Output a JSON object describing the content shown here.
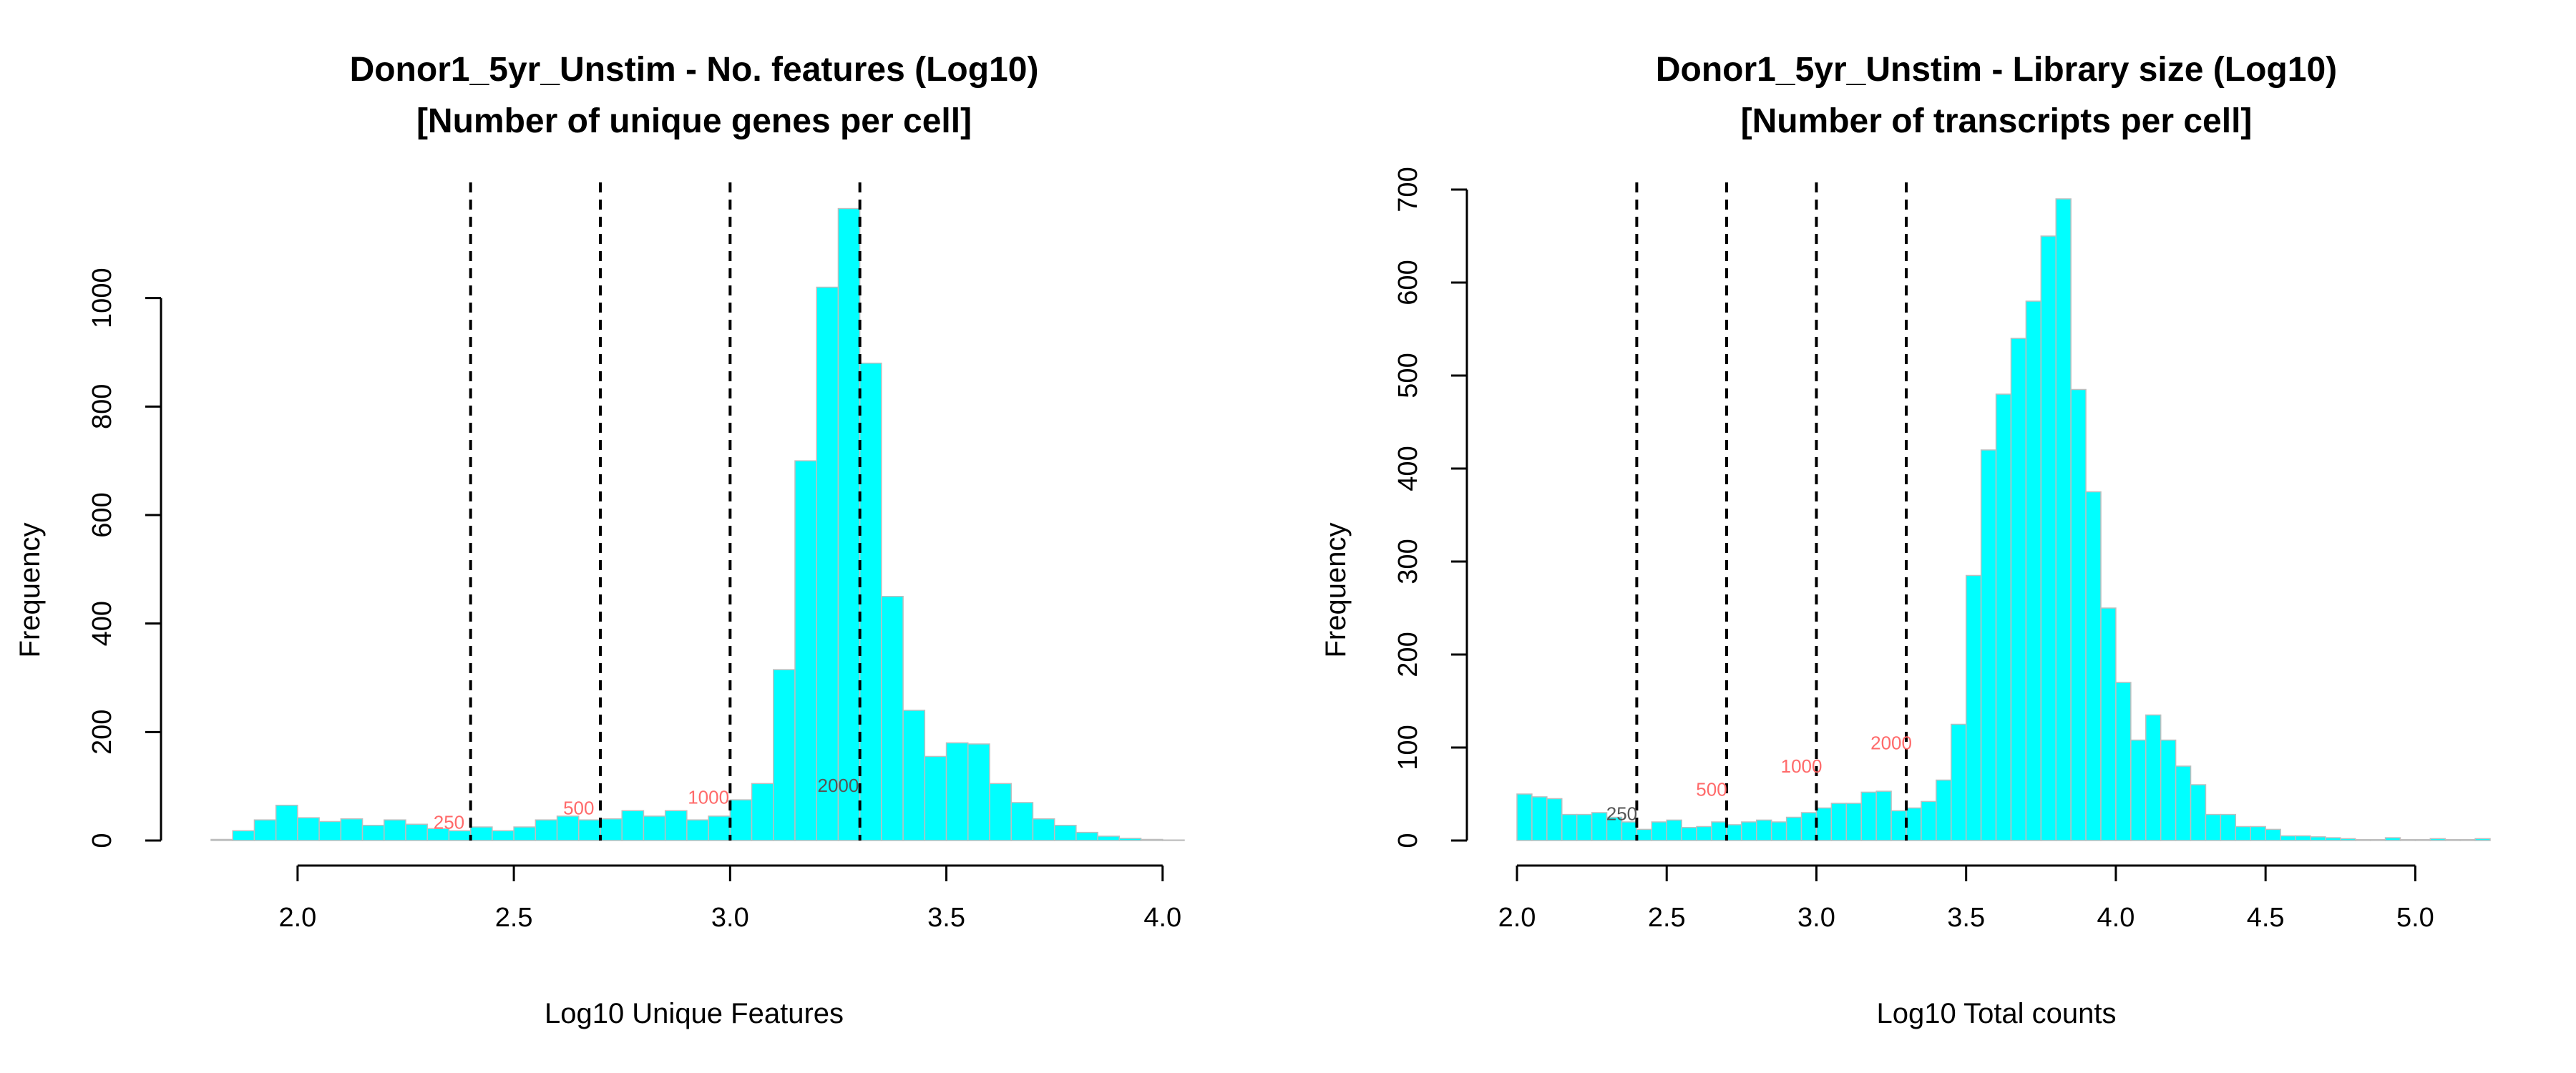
{
  "chart_data": [
    {
      "type": "bar",
      "title": "Donor1_5yr_Unstim - No. features (Log10)",
      "subtitle": "[Number of unique genes per cell]",
      "xlabel": "Log10 Unique Features",
      "ylabel": "Frequency",
      "xlim": [
        1.8,
        4.05
      ],
      "ylim": [
        0,
        1200
      ],
      "x_ticks": [
        "2.0",
        "2.5",
        "3.0",
        "3.5",
        "4.0"
      ],
      "y_ticks": [
        "0",
        "200",
        "400",
        "600",
        "800",
        "1000"
      ],
      "bin_width": 0.05,
      "bin_starts": [
        1.8,
        1.85,
        1.9,
        1.95,
        2.0,
        2.05,
        2.1,
        2.15,
        2.2,
        2.25,
        2.3,
        2.35,
        2.4,
        2.45,
        2.5,
        2.55,
        2.6,
        2.65,
        2.7,
        2.75,
        2.8,
        2.85,
        2.9,
        2.95,
        3.0,
        3.05,
        3.1,
        3.15,
        3.2,
        3.25,
        3.3,
        3.35,
        3.4,
        3.45,
        3.5,
        3.55,
        3.6,
        3.65,
        3.7,
        3.75,
        3.8,
        3.85,
        3.9,
        3.95,
        4.0
      ],
      "values": [
        2,
        18,
        38,
        65,
        42,
        35,
        40,
        28,
        38,
        30,
        22,
        18,
        25,
        18,
        25,
        38,
        45,
        38,
        40,
        55,
        45,
        55,
        38,
        45,
        75,
        105,
        315,
        700,
        1020,
        1165,
        880,
        450,
        240,
        155,
        180,
        178,
        105,
        70,
        40,
        28,
        15,
        8,
        4,
        2,
        1
      ],
      "bar_color": "#00FFFF",
      "thresholds": [
        2.4,
        2.7,
        3.0,
        3.3
      ],
      "annotations": [
        {
          "text": "250",
          "x": 2.35,
          "y": 22,
          "color": "#FF6A6A"
        },
        {
          "text": "500",
          "x": 2.65,
          "y": 48,
          "color": "#FF6A6A"
        },
        {
          "text": "1000",
          "x": 2.95,
          "y": 68,
          "color": "#FF6A6A"
        },
        {
          "text": "2000",
          "x": 3.25,
          "y": 90,
          "color": "#555555"
        }
      ]
    },
    {
      "type": "bar",
      "title": "Donor1_5yr_Unstim - Library size (Log10)",
      "subtitle": "[Number of transcripts per cell]",
      "xlabel": "Log10 Total counts",
      "ylabel": "Frequency",
      "xlim": [
        2.0,
        5.25
      ],
      "ylim": [
        0,
        700
      ],
      "x_ticks": [
        "2.0",
        "2.5",
        "3.0",
        "3.5",
        "4.0",
        "4.5",
        "5.0"
      ],
      "y_ticks": [
        "0",
        "100",
        "200",
        "300",
        "400",
        "500",
        "600",
        "700"
      ],
      "bin_width": 0.05,
      "bin_starts": [
        2.0,
        2.05,
        2.1,
        2.15,
        2.2,
        2.25,
        2.3,
        2.35,
        2.4,
        2.45,
        2.5,
        2.55,
        2.6,
        2.65,
        2.7,
        2.75,
        2.8,
        2.85,
        2.9,
        2.95,
        3.0,
        3.05,
        3.1,
        3.15,
        3.2,
        3.25,
        3.3,
        3.35,
        3.4,
        3.45,
        3.5,
        3.55,
        3.6,
        3.65,
        3.7,
        3.75,
        3.8,
        3.85,
        3.9,
        3.95,
        4.0,
        4.05,
        4.1,
        4.15,
        4.2,
        4.25,
        4.3,
        4.35,
        4.4,
        4.45,
        4.5,
        4.55,
        4.6,
        4.65,
        4.7,
        4.75,
        4.8,
        4.85,
        4.9,
        4.95,
        5.0,
        5.05,
        5.1,
        5.15,
        5.2
      ],
      "values": [
        50,
        47,
        45,
        28,
        28,
        30,
        25,
        20,
        12,
        20,
        22,
        14,
        15,
        20,
        17,
        20,
        22,
        20,
        25,
        30,
        35,
        40,
        40,
        52,
        53,
        32,
        35,
        42,
        65,
        125,
        285,
        420,
        480,
        540,
        580,
        650,
        690,
        485,
        375,
        250,
        170,
        108,
        135,
        108,
        80,
        60,
        28,
        28,
        15,
        15,
        12,
        5,
        5,
        4,
        3,
        2,
        1,
        1,
        3,
        1,
        1,
        2,
        1,
        1,
        2
      ],
      "bar_color": "#00FFFF",
      "thresholds": [
        2.4,
        2.7,
        3.0,
        3.3
      ],
      "annotations": [
        {
          "text": "250",
          "x": 2.35,
          "y": 22,
          "color": "#555555"
        },
        {
          "text": "500",
          "x": 2.65,
          "y": 48,
          "color": "#FF6A6A"
        },
        {
          "text": "1000",
          "x": 2.95,
          "y": 73,
          "color": "#FF6A6A"
        },
        {
          "text": "2000",
          "x": 3.25,
          "y": 98,
          "color": "#FF6A6A"
        }
      ]
    }
  ]
}
